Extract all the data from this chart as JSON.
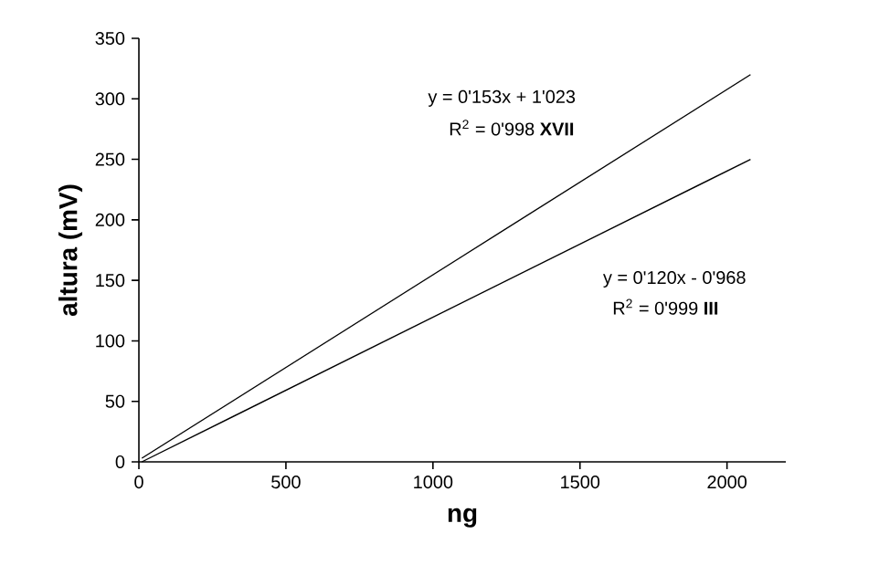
{
  "chart_data": {
    "type": "line",
    "xlabel": "ng",
    "ylabel": "altura (mV)",
    "xlim": [
      0,
      2200
    ],
    "ylim": [
      0,
      350
    ],
    "xticks": [
      0,
      500,
      1000,
      1500,
      2000
    ],
    "yticks": [
      0,
      50,
      100,
      150,
      200,
      250,
      300,
      350
    ],
    "x": [
      10,
      2080
    ],
    "series": [
      {
        "color": "#000000",
        "values": [
          3,
          320
        ]
      },
      {
        "color": "#000000",
        "values": [
          0,
          250
        ]
      }
    ],
    "annotations": [
      "y = 0'153x + 1'023",
      "R$^{2}$ = 0'998 **XVII**",
      "y = 0'120x - 0'968",
      "R$^{2}$ = 0'999 **III**"
    ],
    "marker": "none",
    "line_style": "solid"
  }
}
